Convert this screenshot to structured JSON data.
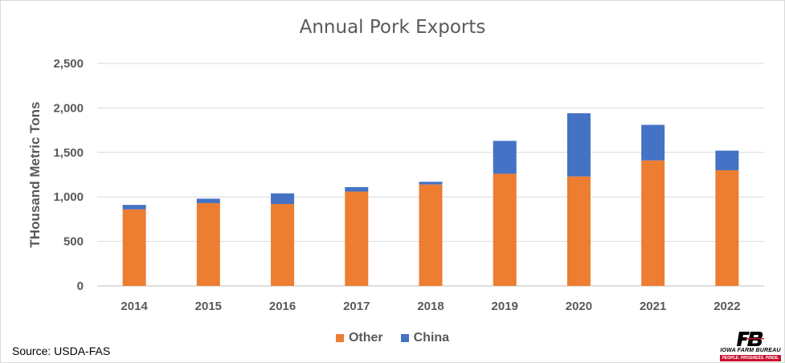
{
  "chart_data": {
    "type": "bar",
    "stacked": true,
    "title": "Annual Pork Exports",
    "ylabel": "THousand Metric Tons",
    "xlabel": "",
    "ylim": [
      0,
      2500
    ],
    "yticks": [
      0,
      500,
      1000,
      1500,
      2000,
      2500
    ],
    "ytick_labels": [
      "0",
      "500",
      "1,000",
      "1,500",
      "2,000",
      "2,500"
    ],
    "grid": true,
    "legend_position": "bottom",
    "categories": [
      "2014",
      "2015",
      "2016",
      "2017",
      "2018",
      "2019",
      "2020",
      "2021",
      "2022"
    ],
    "series": [
      {
        "name": "Other",
        "color": "#ED7D31",
        "values": [
          860,
          930,
          920,
          1060,
          1140,
          1260,
          1230,
          1410,
          1300
        ]
      },
      {
        "name": "China",
        "color": "#4472C4",
        "values": [
          50,
          50,
          120,
          50,
          30,
          370,
          710,
          400,
          220
        ]
      }
    ]
  },
  "footer": {
    "source": "Source: USDA-FAS"
  },
  "logo": {
    "mark": "FB",
    "name": "IOWA FARM BUREAU",
    "tagline": "PEOPLE. PROGRESS. PRIDE."
  }
}
